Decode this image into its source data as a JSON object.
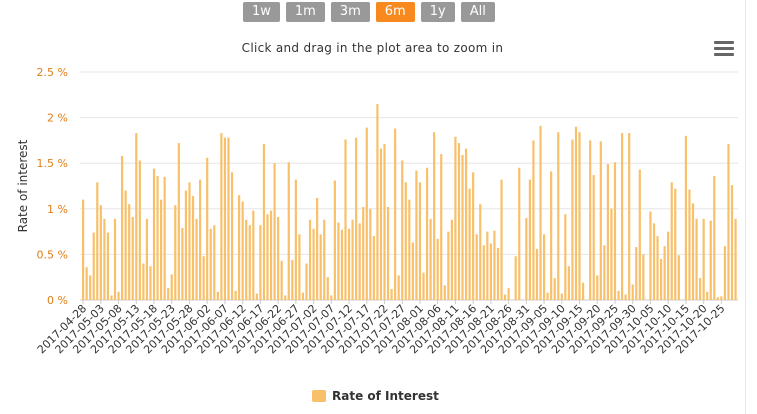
{
  "range_selector": {
    "buttons": [
      {
        "label": "1w"
      },
      {
        "label": "1m"
      },
      {
        "label": "3m"
      },
      {
        "label": "6m",
        "active": true
      },
      {
        "label": "1y"
      },
      {
        "label": "All"
      }
    ]
  },
  "subtitle": "Click and drag in the plot area to zoom in",
  "menu_icon": "hamburger-menu-icon",
  "colors": {
    "bar": "#f8c06a",
    "axis_label": "#e07e17",
    "grid": "#e6e6e6",
    "active_button": "#f7891f",
    "button": "#999999"
  },
  "chart_data": {
    "type": "bar",
    "ylabel": "Rate of interest",
    "ylim": [
      0,
      2.5
    ],
    "yticks": [
      "0 %",
      "0.5 %",
      "1 %",
      "1.5 %",
      "2 %",
      "2.5 %"
    ],
    "x_start": "2017-04-28",
    "x_tick_labels": [
      "2017-04-28",
      "2017-05-03",
      "2017-05-08",
      "2017-05-13",
      "2017-05-18",
      "2017-05-23",
      "2017-05-28",
      "2017-06-02",
      "2017-06-07",
      "2017-06-12",
      "2017-06-17",
      "2017-06-22",
      "2017-06-27",
      "2017-07-02",
      "2017-07-07",
      "2017-07-12",
      "2017-07-17",
      "2017-07-22",
      "2017-07-27",
      "2017-08-01",
      "2017-08-06",
      "2017-08-11",
      "2017-08-16",
      "2017-08-21",
      "2017-08-26",
      "2017-08-31",
      "2017-09-05",
      "2017-09-10",
      "2017-09-15",
      "2017-09-20",
      "2017-09-25",
      "2017-09-30",
      "2017-10-05",
      "2017-10-10",
      "2017-10-15",
      "2017-10-20",
      "2017-10-25"
    ],
    "grid": true,
    "legend_position": "bottom-center",
    "series": [
      {
        "name": "Rate of Interest",
        "values": [
          1.1,
          0.36,
          0.27,
          0.74,
          1.29,
          1.04,
          0.89,
          0.74,
          0.05,
          0.89,
          0.09,
          1.58,
          1.2,
          1.05,
          0.91,
          1.83,
          1.53,
          0.4,
          0.89,
          0.37,
          1.44,
          1.36,
          1.1,
          1.35,
          0.13,
          0.28,
          1.04,
          1.72,
          0.79,
          1.2,
          1.29,
          1.14,
          0.89,
          1.32,
          0.48,
          1.56,
          0.78,
          0.82,
          0.09,
          1.83,
          1.78,
          1.78,
          1.4,
          0.1,
          1.15,
          1.08,
          0.88,
          0.82,
          0.98,
          0.07,
          0.82,
          1.71,
          0.94,
          0.98,
          1.5,
          0.91,
          0.43,
          0.05,
          1.51,
          0.44,
          1.32,
          0.72,
          0.08,
          0.4,
          0.88,
          0.78,
          1.12,
          0.72,
          0.88,
          0.25,
          0.05,
          1.31,
          0.85,
          0.77,
          1.76,
          0.78,
          0.88,
          1.78,
          0.84,
          1.02,
          1.89,
          1.0,
          0.7,
          2.15,
          1.66,
          1.71,
          1.02,
          0.12,
          1.88,
          0.27,
          1.53,
          1.29,
          1.1,
          0.63,
          1.42,
          1.29,
          0.3,
          1.45,
          0.89,
          1.84,
          0.67,
          1.6,
          0.16,
          0.75,
          0.88,
          1.79,
          1.72,
          1.59,
          1.66,
          1.22,
          1.4,
          0.72,
          1.05,
          0.6,
          0.75,
          0.62,
          0.76,
          0.57,
          1.32,
          0.06,
          0.13,
          0.0,
          0.48,
          1.45,
          0.0,
          0.9,
          1.32,
          1.75,
          0.56,
          1.91,
          0.72,
          0.08,
          1.41,
          0.24,
          1.84,
          0.07,
          0.94,
          0.37,
          1.76,
          1.9,
          1.84,
          0.19,
          0.0,
          1.75,
          1.37,
          0.27,
          1.74,
          0.6,
          1.49,
          1.0,
          1.51,
          0.1,
          1.83,
          0.06,
          1.83,
          0.17,
          0.58,
          1.43,
          0.5,
          0.0,
          0.97,
          0.84,
          0.7,
          0.45,
          0.59,
          0.75,
          1.29,
          1.22,
          0.49,
          0.0,
          1.8,
          1.21,
          1.06,
          0.89,
          0.24,
          0.89,
          0.09,
          0.87,
          1.36,
          0.03,
          0.04,
          0.59,
          1.71,
          1.26,
          0.89
        ]
      }
    ]
  }
}
